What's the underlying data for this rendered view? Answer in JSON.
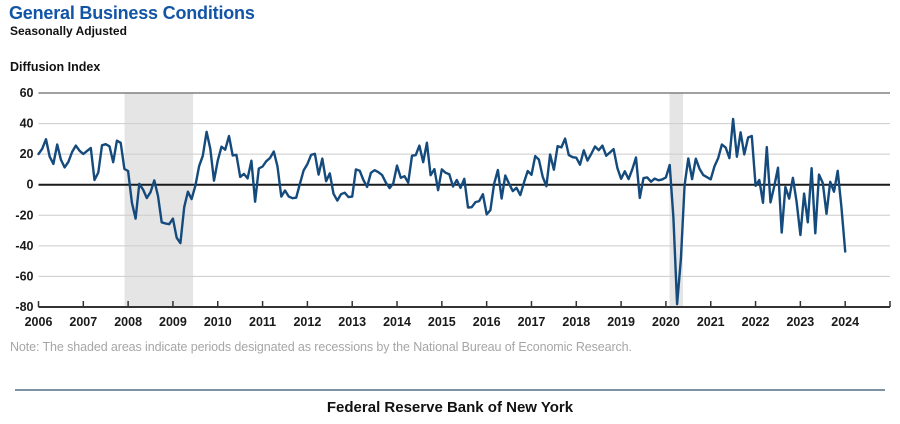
{
  "header": {
    "title": "General Business Conditions",
    "subtitle": "Seasonally Adjusted",
    "axis_label": "Diffusion Index"
  },
  "note": "Note: The shaded areas indicate periods designated as recessions by the National Bureau of Economic Research.",
  "footer": {
    "org": "Federal Reserve Bank of New York"
  },
  "colors": {
    "line": "#144a7c",
    "title_blue": "#1254a6",
    "grid": "#cccccc",
    "top_border": "#808080",
    "zero_line": "#1a1a1a",
    "axis": "#333333",
    "tick": "#333333",
    "band": "#e5e5e5",
    "label": "#1a1a1a",
    "note_gray": "#a6a6a6",
    "footer_rule": "#7d93a3"
  },
  "chart_data": {
    "type": "line",
    "title": "General Business Conditions",
    "subtitle": "Seasonally Adjusted",
    "ylabel": "Diffusion Index",
    "xlabel": "",
    "ylim": [
      -80,
      60
    ],
    "yticks": [
      60,
      40,
      20,
      0,
      -20,
      -40,
      -60,
      -80
    ],
    "x_range": [
      2006,
      2025
    ],
    "xtick_years": [
      2006,
      2007,
      2008,
      2009,
      2010,
      2011,
      2012,
      2013,
      2014,
      2015,
      2016,
      2017,
      2018,
      2019,
      2020,
      2021,
      2022,
      2023,
      2024
    ],
    "grid": "horizontal",
    "legend_position": "none",
    "recession_bands": [
      {
        "start": 2007.92,
        "end": 2009.45
      },
      {
        "start": 2020.08,
        "end": 2020.38
      }
    ],
    "series": [
      {
        "name": "General Business Conditions (Diffusion Index, Seasonally Adjusted)",
        "frequency": "monthly",
        "start_year": 2006,
        "start_month": 1,
        "values": [
          20.1,
          23.5,
          29.8,
          18.3,
          13.6,
          26.3,
          16.4,
          11.3,
          15.0,
          21.4,
          25.6,
          22.2,
          20.1,
          22.1,
          24.0,
          3.1,
          8.0,
          25.8,
          26.5,
          25.1,
          14.7,
          28.8,
          27.4,
          10.3,
          9.0,
          -11.7,
          -22.2,
          0.6,
          -3.2,
          -8.7,
          -4.9,
          2.8,
          -7.4,
          -24.6,
          -25.4,
          -25.8,
          -22.2,
          -34.7,
          -38.2,
          -14.7,
          -4.6,
          -9.4,
          -0.6,
          12.1,
          18.9,
          34.6,
          23.5,
          2.6,
          15.9,
          24.9,
          22.9,
          31.9,
          19.1,
          19.6,
          5.1,
          7.1,
          4.1,
          15.7,
          -11.1,
          10.6,
          11.9,
          15.4,
          17.5,
          21.7,
          11.9,
          -7.8,
          -3.8,
          -7.7,
          -8.8,
          -8.5,
          0.6,
          9.5,
          13.5,
          19.5,
          20.2,
          6.6,
          17.1,
          2.3,
          7.4,
          -5.9,
          -10.4,
          -6.2,
          -5.2,
          -8.1,
          -7.8,
          10.0,
          9.2,
          3.1,
          -1.4,
          7.8,
          9.5,
          8.2,
          6.3,
          1.5,
          -2.2,
          0.9,
          12.5,
          4.5,
          5.6,
          1.3,
          19.0,
          19.3,
          25.6,
          14.7,
          27.5,
          6.2,
          10.2,
          -3.6,
          10.0,
          7.8,
          6.9,
          -1.2,
          3.1,
          -2.1,
          3.9,
          -14.9,
          -14.7,
          -11.4,
          -10.7,
          -6.2,
          -19.4,
          -16.6,
          0.6,
          9.6,
          -9.0,
          6.0,
          0.6,
          -4.2,
          -2.0,
          -6.8,
          1.5,
          9.0,
          6.5,
          18.7,
          16.4,
          5.2,
          -1.0,
          19.8,
          9.8,
          25.2,
          24.4,
          30.2,
          19.4,
          18.0,
          17.7,
          13.1,
          22.5,
          15.8,
          20.1,
          25.0,
          22.6,
          25.6,
          19.0,
          21.1,
          23.3,
          10.9,
          3.9,
          8.8,
          3.7,
          10.1,
          17.8,
          -8.6,
          4.3,
          4.8,
          2.0,
          4.0,
          2.9,
          3.5,
          4.8,
          12.9,
          -21.5,
          -78.2,
          -48.5,
          -0.2,
          17.2,
          3.7,
          17.0,
          10.5,
          6.3,
          4.9,
          3.5,
          12.1,
          17.4,
          26.3,
          24.3,
          17.4,
          43.0,
          18.3,
          34.3,
          19.8,
          30.9,
          31.9,
          -0.7,
          3.1,
          -11.8,
          24.6,
          -11.6,
          -1.2,
          11.1,
          -31.3,
          -1.5,
          -9.1,
          4.5,
          -11.2,
          -32.9,
          -5.8,
          -24.6,
          10.8,
          -31.8,
          6.6,
          1.1,
          -19.0,
          1.9,
          -4.6,
          9.1,
          -14.5,
          -43.7
        ]
      }
    ],
    "note": "Note: The shaded areas indicate periods designated as recessions by the National Bureau of Economic Research."
  }
}
